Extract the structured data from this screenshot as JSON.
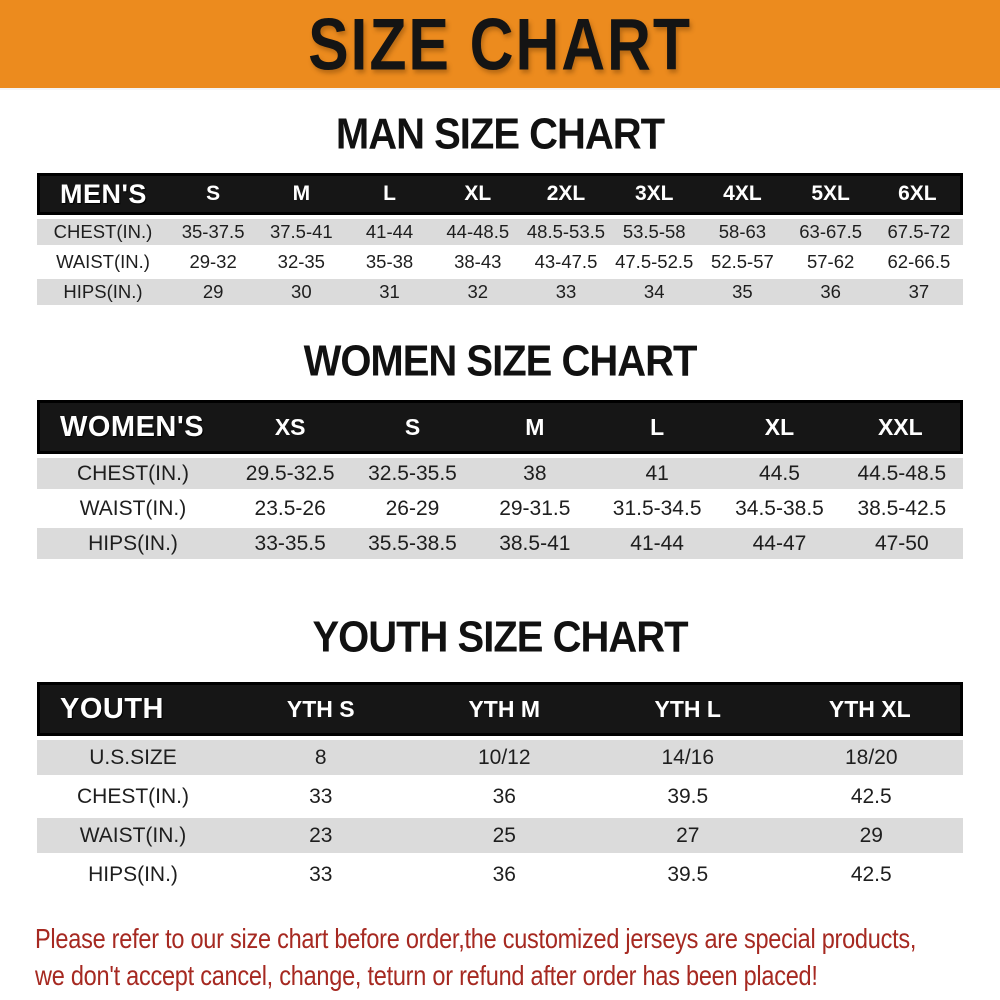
{
  "banner": {
    "title": "SIZE CHART"
  },
  "chart_data": [
    {
      "type": "table",
      "title": "MAN SIZE CHART",
      "corner_label": "MEN'S",
      "columns": [
        "S",
        "M",
        "L",
        "XL",
        "2XL",
        "3XL",
        "4XL",
        "5XL",
        "6XL"
      ],
      "rows": [
        {
          "label": "CHEST(IN.)",
          "values": [
            "35-37.5",
            "37.5-41",
            "41-44",
            "44-48.5",
            "48.5-53.5",
            "53.5-58",
            "58-63",
            "63-67.5",
            "67.5-72"
          ]
        },
        {
          "label": "WAIST(IN.)",
          "values": [
            "29-32",
            "32-35",
            "35-38",
            "38-43",
            "43-47.5",
            "47.5-52.5",
            "52.5-57",
            "57-62",
            "62-66.5"
          ]
        },
        {
          "label": "HIPS(IN.)",
          "values": [
            "29",
            "30",
            "31",
            "32",
            "33",
            "34",
            "35",
            "36",
            "37"
          ]
        }
      ]
    },
    {
      "type": "table",
      "title": "WOMEN SIZE CHART",
      "corner_label": "WOMEN'S",
      "columns": [
        "XS",
        "S",
        "M",
        "L",
        "XL",
        "XXL"
      ],
      "rows": [
        {
          "label": "CHEST(IN.)",
          "values": [
            "29.5-32.5",
            "32.5-35.5",
            "38",
            "41",
            "44.5",
            "44.5-48.5"
          ]
        },
        {
          "label": "WAIST(IN.)",
          "values": [
            "23.5-26",
            "26-29",
            "29-31.5",
            "31.5-34.5",
            "34.5-38.5",
            "38.5-42.5"
          ]
        },
        {
          "label": "HIPS(IN.)",
          "values": [
            "33-35.5",
            "35.5-38.5",
            "38.5-41",
            "41-44",
            "44-47",
            "47-50"
          ]
        }
      ]
    },
    {
      "type": "table",
      "title": "YOUTH SIZE CHART",
      "corner_label": "YOUTH",
      "columns": [
        "YTH S",
        "YTH M",
        "YTH L",
        "YTH XL"
      ],
      "rows": [
        {
          "label": "U.S.SIZE",
          "values": [
            "8",
            "10/12",
            "14/16",
            "18/20"
          ]
        },
        {
          "label": "CHEST(IN.)",
          "values": [
            "33",
            "36",
            "39.5",
            "42.5"
          ]
        },
        {
          "label": "WAIST(IN.)",
          "values": [
            "23",
            "25",
            "27",
            "29"
          ]
        },
        {
          "label": "HIPS(IN.)",
          "values": [
            "33",
            "36",
            "39.5",
            "42.5"
          ]
        }
      ]
    }
  ],
  "footer": {
    "line1": "Please refer to our size chart before order,the customized jerseys are special products,",
    "line2": "we don't accept cancel, change, teturn or refund after order has been placed!"
  },
  "colors": {
    "banner_orange": "#EC8B1E",
    "header_black": "#161616",
    "row_gray": "#DBDBDB",
    "note_red": "#A62921"
  }
}
